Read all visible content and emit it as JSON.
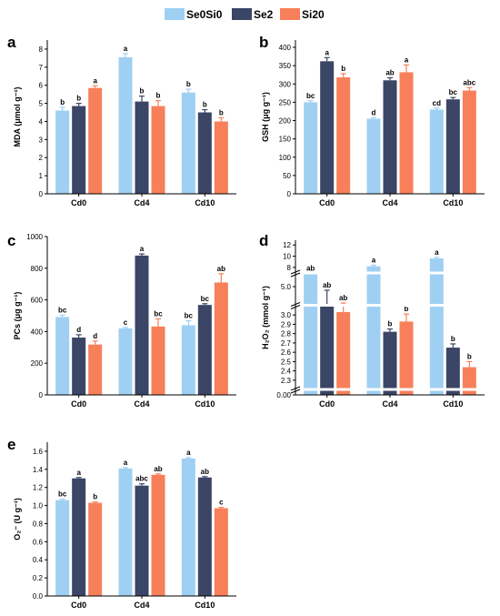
{
  "legend": [
    {
      "name": "Se0Si0",
      "color": "#9fd0f3"
    },
    {
      "name": "Se2",
      "color": "#3b4565"
    },
    {
      "name": "Si20",
      "color": "#f7805a"
    }
  ],
  "chart_data": [
    {
      "panel": "a",
      "type": "bar",
      "ylabel": "MDA (μmol g⁻¹)",
      "categories": [
        "Cd0",
        "Cd4",
        "Cd10"
      ],
      "ylim": [
        0,
        8.5
      ],
      "yticks": [
        0,
        1,
        2,
        3,
        4,
        5,
        6,
        7,
        8
      ],
      "series": [
        {
          "name": "Se0Si0",
          "values": [
            4.6,
            7.55,
            5.6
          ],
          "errors": [
            0.18,
            0.2,
            0.18
          ],
          "labels": [
            "b",
            "a",
            "b"
          ]
        },
        {
          "name": "Se2",
          "values": [
            4.85,
            5.1,
            4.5
          ],
          "errors": [
            0.15,
            0.3,
            0.15
          ],
          "labels": [
            "b",
            "b",
            "b"
          ]
        },
        {
          "name": "Si20",
          "values": [
            5.85,
            4.85,
            4.0
          ],
          "errors": [
            0.12,
            0.3,
            0.2
          ],
          "labels": [
            "a",
            "b",
            "b"
          ]
        }
      ]
    },
    {
      "panel": "b",
      "type": "bar",
      "ylabel": "GSH (μg g⁻¹)",
      "categories": [
        "Cd0",
        "Cd4",
        "Cd10"
      ],
      "ylim": [
        0,
        420
      ],
      "yticks": [
        0,
        50,
        100,
        150,
        200,
        250,
        300,
        350,
        400
      ],
      "series": [
        {
          "name": "Se0Si0",
          "values": [
            250,
            205,
            230
          ],
          "errors": [
            4,
            3,
            4
          ],
          "labels": [
            "bc",
            "d",
            "cd"
          ]
        },
        {
          "name": "Se2",
          "values": [
            362,
            310,
            258
          ],
          "errors": [
            10,
            7,
            5
          ],
          "labels": [
            "a",
            "ab",
            "bc"
          ]
        },
        {
          "name": "Si20",
          "values": [
            318,
            332,
            282
          ],
          "errors": [
            10,
            20,
            8
          ],
          "labels": [
            "b",
            "a",
            "abc"
          ]
        }
      ]
    },
    {
      "panel": "c",
      "type": "bar",
      "ylabel": "PCs (μg g⁻¹)",
      "categories": [
        "Cd0",
        "Cd4",
        "Cd10"
      ],
      "ylim": [
        0,
        1000
      ],
      "yticks": [
        0,
        200,
        400,
        600,
        800,
        1000
      ],
      "series": [
        {
          "name": "Se0Si0",
          "values": [
            492,
            420,
            440
          ],
          "errors": [
            12,
            6,
            28
          ],
          "labels": [
            "bc",
            "c",
            "bc"
          ]
        },
        {
          "name": "Se2",
          "values": [
            362,
            880,
            568
          ],
          "errors": [
            18,
            10,
            8
          ],
          "labels": [
            "d",
            "a",
            "bc"
          ]
        },
        {
          "name": "Si20",
          "values": [
            318,
            432,
            710
          ],
          "errors": [
            22,
            48,
            55
          ],
          "labels": [
            "d",
            "bc",
            "ab"
          ]
        }
      ]
    },
    {
      "panel": "d",
      "type": "bar",
      "ylabel": "H₂O₂ (mmol g⁻¹)",
      "categories": [
        "Cd0",
        "Cd4",
        "Cd10"
      ],
      "yticks": [
        "0.00",
        "2.3",
        "2.4",
        "2.5",
        "2.6",
        "2.7",
        "2.8",
        "2.9",
        "3.0",
        "5.0",
        "8",
        "10",
        "12"
      ],
      "broken_axis": true,
      "series": [
        {
          "name": "Se0Si0",
          "values": [
            6.8,
            8.2,
            9.6
          ],
          "errors": [
            0.15,
            0.2,
            0.2
          ],
          "labels": [
            "ab",
            "a",
            "a"
          ]
        },
        {
          "name": "Se2",
          "values": [
            4.5,
            2.82,
            2.65
          ],
          "errors": [
            0.4,
            0.03,
            0.04
          ],
          "labels": [
            "ab",
            "b",
            "b"
          ]
        },
        {
          "name": "Si20",
          "values": [
            4.3,
            2.93,
            2.44
          ],
          "errors": [
            0.25,
            0.08,
            0.06
          ],
          "labels": [
            "ab",
            "b",
            "b"
          ]
        }
      ]
    },
    {
      "panel": "e",
      "type": "bar",
      "ylabel": "O₂⁻ (U g⁻¹)",
      "categories": [
        "Cd0",
        "Cd4",
        "Cd10"
      ],
      "ylim": [
        0,
        1.7
      ],
      "yticks": [
        "0.0",
        "0.2",
        "0.4",
        "0.6",
        "0.8",
        "1.0",
        "1.2",
        "1.4",
        "1.6"
      ],
      "series": [
        {
          "name": "Se0Si0",
          "values": [
            1.06,
            1.41,
            1.52
          ],
          "errors": [
            0.01,
            0.01,
            0.01
          ],
          "labels": [
            "bc",
            "a",
            "a"
          ]
        },
        {
          "name": "Se2",
          "values": [
            1.3,
            1.22,
            1.31
          ],
          "errors": [
            0.01,
            0.02,
            0.01
          ],
          "labels": [
            "a",
            "abc",
            "ab"
          ]
        },
        {
          "name": "Si20",
          "values": [
            1.03,
            1.34,
            0.97
          ],
          "errors": [
            0.01,
            0.01,
            0.01
          ],
          "labels": [
            "b",
            "ab",
            "c"
          ]
        }
      ]
    }
  ]
}
